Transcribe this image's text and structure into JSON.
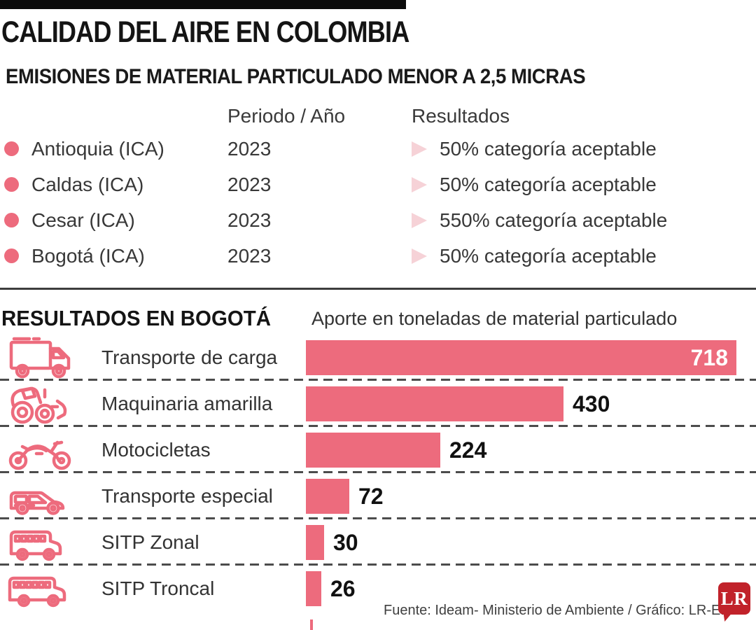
{
  "page": {
    "title": "CALIDAD DEL AIRE EN COLOMBIA",
    "subtitle": "EMISIONES DE MATERIAL PARTICULADO MENOR A 2,5 MICRAS"
  },
  "table": {
    "col_period": "Periodo / Año",
    "col_results": "Resultados",
    "rows": [
      {
        "region": "Antioquia (ICA)",
        "period": "2023",
        "result": "50% categoría aceptable"
      },
      {
        "region": "Caldas (ICA)",
        "period": "2023",
        "result": "50% categoría aceptable"
      },
      {
        "region": "Cesar (ICA)",
        "period": "2023",
        "result": "550% categoría aceptable"
      },
      {
        "region": "Bogotá (ICA)",
        "period": "2023",
        "result": "50% categoría aceptable"
      }
    ]
  },
  "bogota": {
    "heading": "RESULTADOS EN BOGOTÁ",
    "axis_label": "Aporte en toneladas de material particulado"
  },
  "chart_data": {
    "type": "bar",
    "orientation": "horizontal",
    "title": "Aporte en toneladas de material particulado",
    "categories": [
      "Transporte de carga",
      "Maquinaria amarilla",
      "Motocicletas",
      "Transporte especial",
      "SITP Zonal",
      "SITP Troncal"
    ],
    "values": [
      718,
      430,
      224,
      72,
      30,
      26
    ],
    "icons": [
      "cargo-truck-icon",
      "front-loader-icon",
      "motorcycle-icon",
      "van-icon",
      "bus-icon",
      "long-bus-icon"
    ],
    "xlim": [
      0,
      718
    ],
    "bar_color": "#ed6b7d",
    "grid": "dashed-row-separators",
    "value_labels": "end-of-bar"
  },
  "footer": {
    "source": "Fuente: Ideam- Ministerio de Ambiente / Gráfico: LR-ER",
    "logo_text": "LR"
  },
  "colors": {
    "accent_pink": "#ed6b7d",
    "arrow_light_pink": "#f6d2d7",
    "logo_red": "#c1222a",
    "text_dark": "#141414",
    "separator_gray": "#4c4c4c"
  }
}
